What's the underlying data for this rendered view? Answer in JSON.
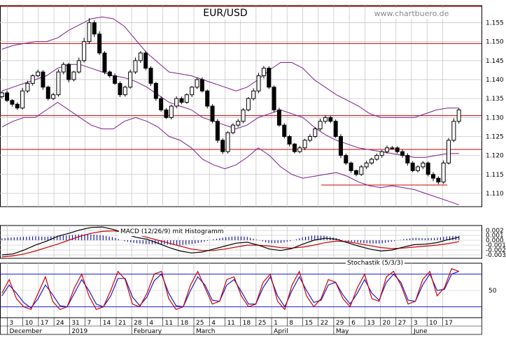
{
  "chart_data": {
    "type": "candlestick",
    "title": "EUR/USD",
    "watermark": "www.chartbuero.de",
    "colors": {
      "background": "#ffffff",
      "grid": "#c8c8c8",
      "candle": "#000000",
      "bollinger": "#7a1e8c",
      "level": "#cc0000",
      "macd": "#000000",
      "signal": "#cc0000",
      "histogram": "#1a1aa0",
      "stoch_k": "#cc0000",
      "stoch_d": "#1a1acc",
      "stoch_band": "#1a1acc"
    },
    "x_ticks": [
      "3",
      "10",
      "17",
      "24",
      "31",
      "7",
      "14",
      "21",
      "28",
      "4",
      "11",
      "18",
      "25",
      "4",
      "11",
      "18",
      "25",
      "1",
      "8",
      "15",
      "22",
      "29",
      "6",
      "13",
      "20",
      "27",
      "3",
      "10",
      "17"
    ],
    "months": [
      "December",
      "2019",
      "February",
      "March",
      "April",
      "May",
      "June"
    ],
    "month_tick_index": [
      0,
      4,
      8,
      12,
      17,
      21,
      26
    ],
    "price_axis": {
      "ticks": [
        "1.155",
        "1.150",
        "1.145",
        "1.140",
        "1.135",
        "1.130",
        "1.125",
        "1.120",
        "1.115",
        "1.110"
      ],
      "tick_values": [
        1.155,
        1.15,
        1.145,
        1.14,
        1.135,
        1.13,
        1.125,
        1.12,
        1.115,
        1.11
      ],
      "ylim": [
        1.1065,
        1.1595
      ]
    },
    "horizontal_levels": [
      1.1593,
      1.1495,
      1.1305,
      1.1216
    ],
    "support_segment": {
      "value": 1.1122,
      "from_tick": 20.2,
      "to_tick": 28.3
    },
    "price_series": {
      "start_tick": -0.35,
      "end_tick": 29.05,
      "close": [
        1.1365,
        1.1345,
        1.1335,
        1.1325,
        1.137,
        1.139,
        1.141,
        1.142,
        1.138,
        1.135,
        1.136,
        1.142,
        1.144,
        1.14,
        1.142,
        1.145,
        1.15,
        1.155,
        1.152,
        1.147,
        1.142,
        1.141,
        1.139,
        1.136,
        1.138,
        1.142,
        1.145,
        1.147,
        1.143,
        1.139,
        1.135,
        1.132,
        1.13,
        1.133,
        1.135,
        1.134,
        1.136,
        1.138,
        1.14,
        1.137,
        1.133,
        1.129,
        1.124,
        1.121,
        1.126,
        1.128,
        1.129,
        1.132,
        1.135,
        1.137,
        1.141,
        1.143,
        1.138,
        1.132,
        1.128,
        1.125,
        1.123,
        1.121,
        1.122,
        1.124,
        1.125,
        1.127,
        1.129,
        1.13,
        1.129,
        1.125,
        1.12,
        1.118,
        1.116,
        1.115,
        1.117,
        1.118,
        1.119,
        1.12,
        1.121,
        1.122,
        1.122,
        1.121,
        1.12,
        1.118,
        1.116,
        1.117,
        1.118,
        1.115,
        1.114,
        1.113,
        1.118,
        1.124,
        1.129,
        1.132
      ],
      "high_extra": [
        4,
        6,
        3,
        5,
        8,
        7,
        4,
        6,
        5,
        4,
        5,
        7,
        6,
        4,
        3,
        8,
        10,
        12,
        6,
        7,
        5,
        4,
        6,
        5,
        4,
        6,
        8,
        5,
        6,
        5,
        4,
        6,
        5,
        4,
        6,
        5,
        4,
        3,
        5,
        6,
        4,
        5,
        6,
        5,
        4,
        5,
        6,
        5,
        4,
        7,
        8,
        6,
        5,
        4,
        6,
        5,
        4,
        3,
        5,
        4,
        6,
        5,
        7,
        6,
        4,
        5,
        6,
        5,
        4,
        3,
        5,
        6,
        4,
        5,
        4,
        6,
        5,
        4,
        5,
        6,
        5,
        4,
        5,
        4,
        6,
        5,
        7,
        6,
        8,
        5
      ],
      "low_extra": [
        5,
        4,
        6,
        5,
        4,
        5,
        6,
        4,
        7,
        5,
        4,
        5,
        6,
        7,
        5,
        4,
        5,
        6,
        8,
        5,
        6,
        5,
        4,
        6,
        5,
        4,
        5,
        6,
        5,
        7,
        6,
        5,
        4,
        5,
        6,
        5,
        4,
        6,
        5,
        4,
        6,
        5,
        7,
        6,
        5,
        4,
        6,
        5,
        4,
        5,
        6,
        7,
        5,
        6,
        4,
        5,
        6,
        5,
        4,
        6,
        5,
        4,
        5,
        6,
        5,
        4,
        7,
        5,
        6,
        5,
        4,
        6,
        5,
        4,
        6,
        5,
        4,
        5,
        6,
        7,
        4,
        5,
        6,
        5,
        8,
        6,
        5,
        4,
        5,
        6
      ]
    },
    "bollinger": {
      "upper": [
        1.148,
        1.149,
        1.1495,
        1.15,
        1.15,
        1.151,
        1.153,
        1.1545,
        1.156,
        1.1565,
        1.156,
        1.154,
        1.1505,
        1.147,
        1.1445,
        1.142,
        1.1415,
        1.141,
        1.14,
        1.139,
        1.138,
        1.137,
        1.138,
        1.14,
        1.1425,
        1.1445,
        1.1445,
        1.143,
        1.14,
        1.138,
        1.136,
        1.1345,
        1.133,
        1.131,
        1.13,
        1.13,
        1.13,
        1.13,
        1.131,
        1.132,
        1.1325,
        1.1325
      ],
      "lower": [
        1.1275,
        1.129,
        1.13,
        1.13,
        1.132,
        1.134,
        1.132,
        1.13,
        1.128,
        1.127,
        1.127,
        1.129,
        1.13,
        1.129,
        1.1275,
        1.125,
        1.124,
        1.122,
        1.119,
        1.1175,
        1.1165,
        1.1175,
        1.1195,
        1.122,
        1.12,
        1.117,
        1.115,
        1.114,
        1.1145,
        1.115,
        1.1155,
        1.1145,
        1.113,
        1.112,
        1.1115,
        1.112,
        1.1115,
        1.111,
        1.11,
        1.109,
        1.108,
        1.107
      ],
      "middle": [
        1.137,
        1.138,
        1.139,
        1.14,
        1.141,
        1.143,
        1.144,
        1.144,
        1.143,
        1.142,
        1.141,
        1.1405,
        1.1395,
        1.138,
        1.136,
        1.134,
        1.133,
        1.132,
        1.13,
        1.129,
        1.128,
        1.127,
        1.128,
        1.13,
        1.131,
        1.132,
        1.131,
        1.13,
        1.1275,
        1.1255,
        1.124,
        1.123,
        1.122,
        1.1215,
        1.121,
        1.1205,
        1.12,
        1.1195,
        1.1195,
        1.12,
        1.1205,
        1.1205
      ]
    },
    "macd": {
      "label": "MACD (12/26/9) mit Histogramm",
      "ticks": [
        "0.002",
        "0.001",
        "0.000",
        "-0.001",
        "-0.002",
        "-0.003"
      ],
      "tick_values": [
        0.002,
        0.001,
        0.0,
        -0.001,
        -0.002,
        -0.003
      ],
      "ylim": [
        -0.0037,
        0.003
      ],
      "macd_line": [
        -0.003,
        -0.0028,
        -0.002,
        -0.001,
        -0.0002,
        0.0008,
        0.0014,
        0.0021,
        0.0026,
        0.0027,
        0.0022,
        0.0014,
        0.0006,
        0.0002,
        -0.0006,
        -0.0015,
        -0.0022,
        -0.0026,
        -0.0024,
        -0.0018,
        -0.0012,
        -0.0006,
        -0.0004,
        -0.001,
        -0.0018,
        -0.0021,
        -0.0017,
        -0.0008,
        0.0,
        0.0004,
        0.0002,
        -0.0005,
        -0.0012,
        -0.0018,
        -0.0022,
        -0.002,
        -0.0014,
        -0.0009,
        -0.0008,
        -0.0005,
        0.0001,
        0.0006
      ],
      "signal_line": [
        -0.0034,
        -0.0032,
        -0.0028,
        -0.0022,
        -0.0015,
        -0.0008,
        0.0,
        0.0008,
        0.0014,
        0.0018,
        0.0019,
        0.0017,
        0.0012,
        0.0006,
        0.0,
        -0.0006,
        -0.0012,
        -0.0018,
        -0.0021,
        -0.0021,
        -0.0018,
        -0.0014,
        -0.001,
        -0.001,
        -0.0012,
        -0.0015,
        -0.0016,
        -0.0014,
        -0.001,
        -0.0005,
        -0.0002,
        -0.0003,
        -0.0007,
        -0.0011,
        -0.0015,
        -0.0017,
        -0.0016,
        -0.0014,
        -0.0012,
        -0.001,
        -0.0007,
        -0.0003
      ],
      "histogram": [
        0.0004,
        0.0006,
        0.0007,
        0.0008,
        0.0007,
        0.0009,
        0.001,
        0.0012,
        0.0012,
        0.001,
        0.0006,
        -0.0002,
        -0.0006,
        -0.0008,
        -0.0008,
        -0.0009,
        -0.001,
        -0.0008,
        -0.0004,
        0.0002,
        0.0006,
        0.0008,
        0.0007,
        0.0,
        -0.0006,
        -0.0006,
        -0.0001,
        0.0006,
        0.001,
        0.0009,
        0.0004,
        -0.0002,
        -0.0005,
        -0.0007,
        -0.0007,
        -0.0003,
        0.0002,
        0.0005,
        0.0004,
        0.0005,
        0.0008,
        0.0009
      ]
    },
    "stochastic": {
      "label": "Stochastik (5/3/3)",
      "ticks": [
        "50"
      ],
      "ylim": [
        0,
        100
      ],
      "bands": [
        80,
        20
      ],
      "k_line": [
        45,
        70,
        35,
        20,
        15,
        45,
        75,
        30,
        15,
        20,
        55,
        80,
        40,
        15,
        20,
        50,
        85,
        70,
        25,
        20,
        45,
        80,
        85,
        35,
        15,
        20,
        60,
        85,
        55,
        25,
        30,
        70,
        75,
        40,
        20,
        25,
        65,
        80,
        30,
        15,
        60,
        85,
        40,
        20,
        35,
        70,
        65,
        35,
        20,
        55,
        80,
        35,
        30,
        75,
        85,
        60,
        25,
        30,
        70,
        85,
        40,
        55,
        90,
        85
      ],
      "d_line": [
        40,
        60,
        45,
        28,
        18,
        35,
        60,
        42,
        22,
        20,
        45,
        70,
        50,
        25,
        20,
        40,
        72,
        72,
        38,
        22,
        38,
        68,
        80,
        45,
        22,
        20,
        50,
        75,
        60,
        32,
        30,
        60,
        70,
        48,
        25,
        25,
        55,
        75,
        40,
        20,
        50,
        75,
        50,
        28,
        32,
        60,
        65,
        42,
        25,
        45,
        70,
        45,
        32,
        65,
        80,
        65,
        32,
        30,
        60,
        80,
        50,
        52,
        80,
        85
      ]
    }
  }
}
